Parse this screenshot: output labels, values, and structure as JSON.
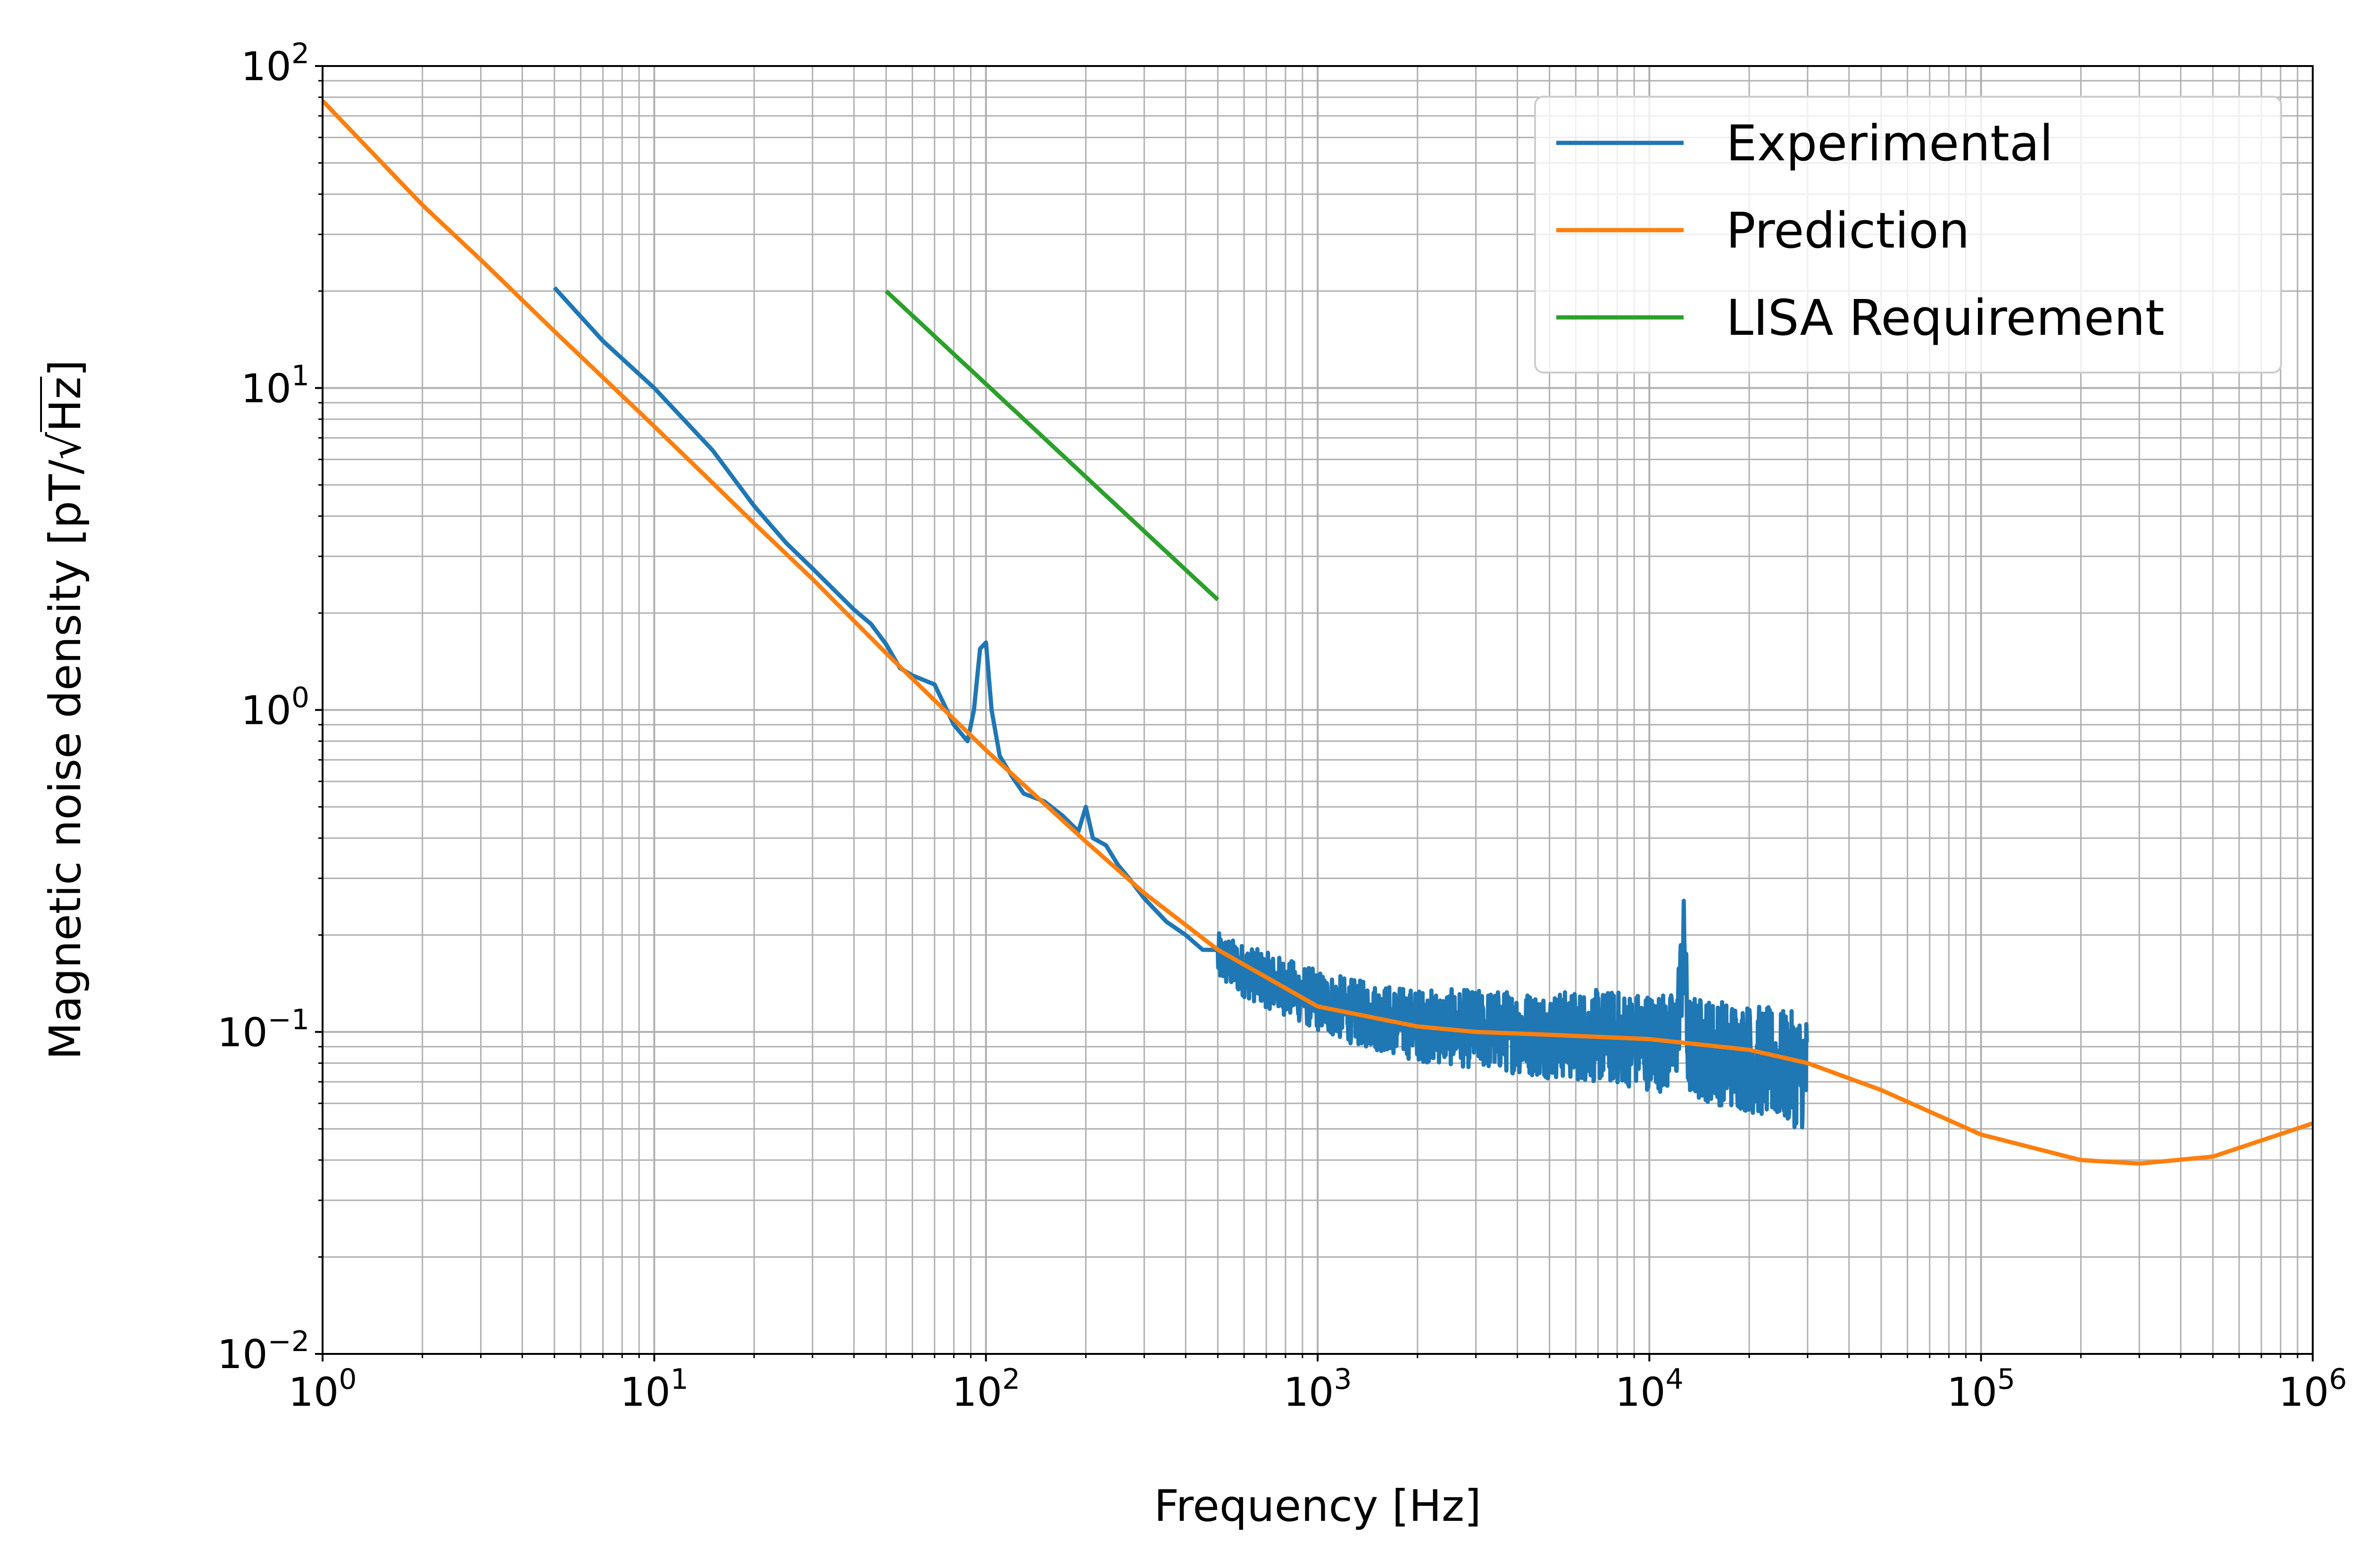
{
  "chart_data": {
    "type": "line",
    "title": "",
    "xlabel": "Frequency [Hz]",
    "ylabel": {
      "prefix": "Magnetic noise density [pT/",
      "radical": "√",
      "radicand": "Hz",
      "suffix": "]"
    },
    "xscale": "log",
    "yscale": "log",
    "xlim": [
      1,
      1000000
    ],
    "ylim": [
      0.01,
      100
    ],
    "grid": "major and minor",
    "legend_position": "top-right",
    "x_ticks": [
      {
        "base": "10",
        "exp": "0",
        "value": 1
      },
      {
        "base": "10",
        "exp": "1",
        "value": 10
      },
      {
        "base": "10",
        "exp": "2",
        "value": 100
      },
      {
        "base": "10",
        "exp": "3",
        "value": 1000
      },
      {
        "base": "10",
        "exp": "4",
        "value": 10000
      },
      {
        "base": "10",
        "exp": "5",
        "value": 100000
      },
      {
        "base": "10",
        "exp": "6",
        "value": 1000000
      }
    ],
    "y_ticks": [
      {
        "base": "10",
        "exp": "−2",
        "value": 0.01
      },
      {
        "base": "10",
        "exp": "−1",
        "value": 0.1
      },
      {
        "base": "10",
        "exp": "0",
        "value": 1
      },
      {
        "base": "10",
        "exp": "1",
        "value": 10
      },
      {
        "base": "10",
        "exp": "2",
        "value": 100
      }
    ],
    "series": [
      {
        "name": "Experimental",
        "color": "#1f77b4",
        "noisy_from_x": 500,
        "x": [
          5,
          7,
          10,
          15,
          20,
          25,
          30,
          40,
          45,
          50,
          55,
          60,
          70,
          80,
          88,
          92,
          96,
          100,
          104,
          110,
          120,
          130,
          150,
          170,
          190,
          200,
          210,
          230,
          250,
          270,
          300,
          350,
          400,
          450,
          500,
          600,
          700,
          800,
          1000,
          1300,
          1600,
          2000,
          3000,
          4000,
          5000,
          7000,
          10000,
          12000,
          12800,
          13000,
          13300,
          15000,
          20000,
          25000,
          30000
        ],
        "y": [
          20.5,
          14.0,
          10.0,
          6.4,
          4.3,
          3.3,
          2.75,
          2.05,
          1.85,
          1.6,
          1.35,
          1.28,
          1.2,
          0.9,
          0.8,
          1.0,
          1.55,
          1.62,
          1.0,
          0.72,
          0.62,
          0.55,
          0.52,
          0.47,
          0.42,
          0.5,
          0.4,
          0.38,
          0.33,
          0.3,
          0.26,
          0.22,
          0.2,
          0.18,
          0.17,
          0.155,
          0.145,
          0.138,
          0.125,
          0.115,
          0.11,
          0.105,
          0.102,
          0.1,
          0.098,
          0.097,
          0.094,
          0.092,
          0.2,
          0.092,
          0.09,
          0.088,
          0.083,
          0.078,
          0.075
        ]
      },
      {
        "name": "Prediction",
        "color": "#ff7f0e",
        "x": [
          1,
          2,
          3,
          5,
          10,
          20,
          30,
          50,
          100,
          200,
          300,
          500,
          1000,
          2000,
          3000,
          5000,
          10000,
          20000,
          30000,
          50000,
          100000,
          200000,
          300000,
          500000,
          1000000
        ],
        "y": [
          78,
          37,
          25,
          15,
          7.6,
          3.8,
          2.55,
          1.5,
          0.75,
          0.39,
          0.27,
          0.18,
          0.12,
          0.104,
          0.1,
          0.098,
          0.095,
          0.088,
          0.08,
          0.066,
          0.048,
          0.04,
          0.039,
          0.041,
          0.052
        ]
      },
      {
        "name": "LISA Requirement",
        "color": "#2ca02c",
        "x": [
          50,
          500
        ],
        "y": [
          20,
          2.2
        ]
      }
    ]
  }
}
